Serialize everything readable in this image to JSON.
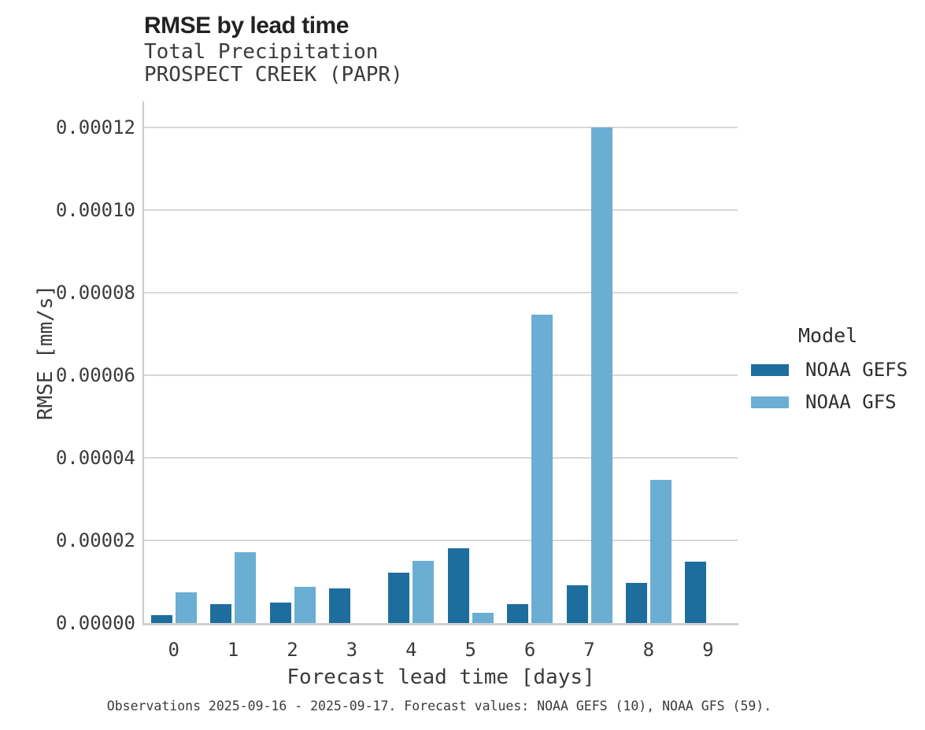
{
  "header": {
    "title": "RMSE by lead time",
    "subtitle_line1": "Total Precipitation",
    "subtitle_line2": "PROSPECT CREEK (PAPR)"
  },
  "chart_data": {
    "type": "bar",
    "title": "RMSE by lead time",
    "subtitle": [
      "Total Precipitation",
      "PROSPECT CREEK (PAPR)"
    ],
    "categories": [
      "0",
      "1",
      "2",
      "3",
      "4",
      "5",
      "6",
      "7",
      "8",
      "9"
    ],
    "series": [
      {
        "name": "NOAA GEFS",
        "color": "#1d6e9e",
        "values": [
          2e-06,
          4.6e-06,
          4.9e-06,
          8.4e-06,
          1.21e-05,
          1.8e-05,
          4.6e-06,
          9.1e-06,
          9.8e-06,
          1.48e-05
        ]
      },
      {
        "name": "NOAA GFS",
        "color": "#6aaed4",
        "values": [
          7.4e-06,
          1.72e-05,
          8.7e-06,
          null,
          1.5e-05,
          2.4e-06,
          7.47e-05,
          0.00012,
          3.47e-05,
          null
        ]
      }
    ],
    "xlabel": "Forecast lead time [days]",
    "ylabel": "RMSE [mm/s]",
    "ylim": [
      0,
      0.0001262
    ],
    "yticks": {
      "values": [
        0,
        2e-05,
        4e-05,
        6e-05,
        8e-05,
        0.0001,
        0.00012
      ],
      "labels": [
        "0.00000",
        "0.00002",
        "0.00004",
        "0.00006",
        "0.00008",
        "0.00010",
        "0.00012"
      ]
    },
    "grid": true,
    "legend_position": "right"
  },
  "legend": {
    "title": "Model",
    "items": [
      {
        "label": "NOAA GEFS",
        "color": "#1d6e9e"
      },
      {
        "label": "NOAA GFS",
        "color": "#6aaed4"
      }
    ]
  },
  "caption": "Observations 2025-09-16 - 2025-09-17. Forecast values: NOAA GEFS (10), NOAA GFS (59)."
}
